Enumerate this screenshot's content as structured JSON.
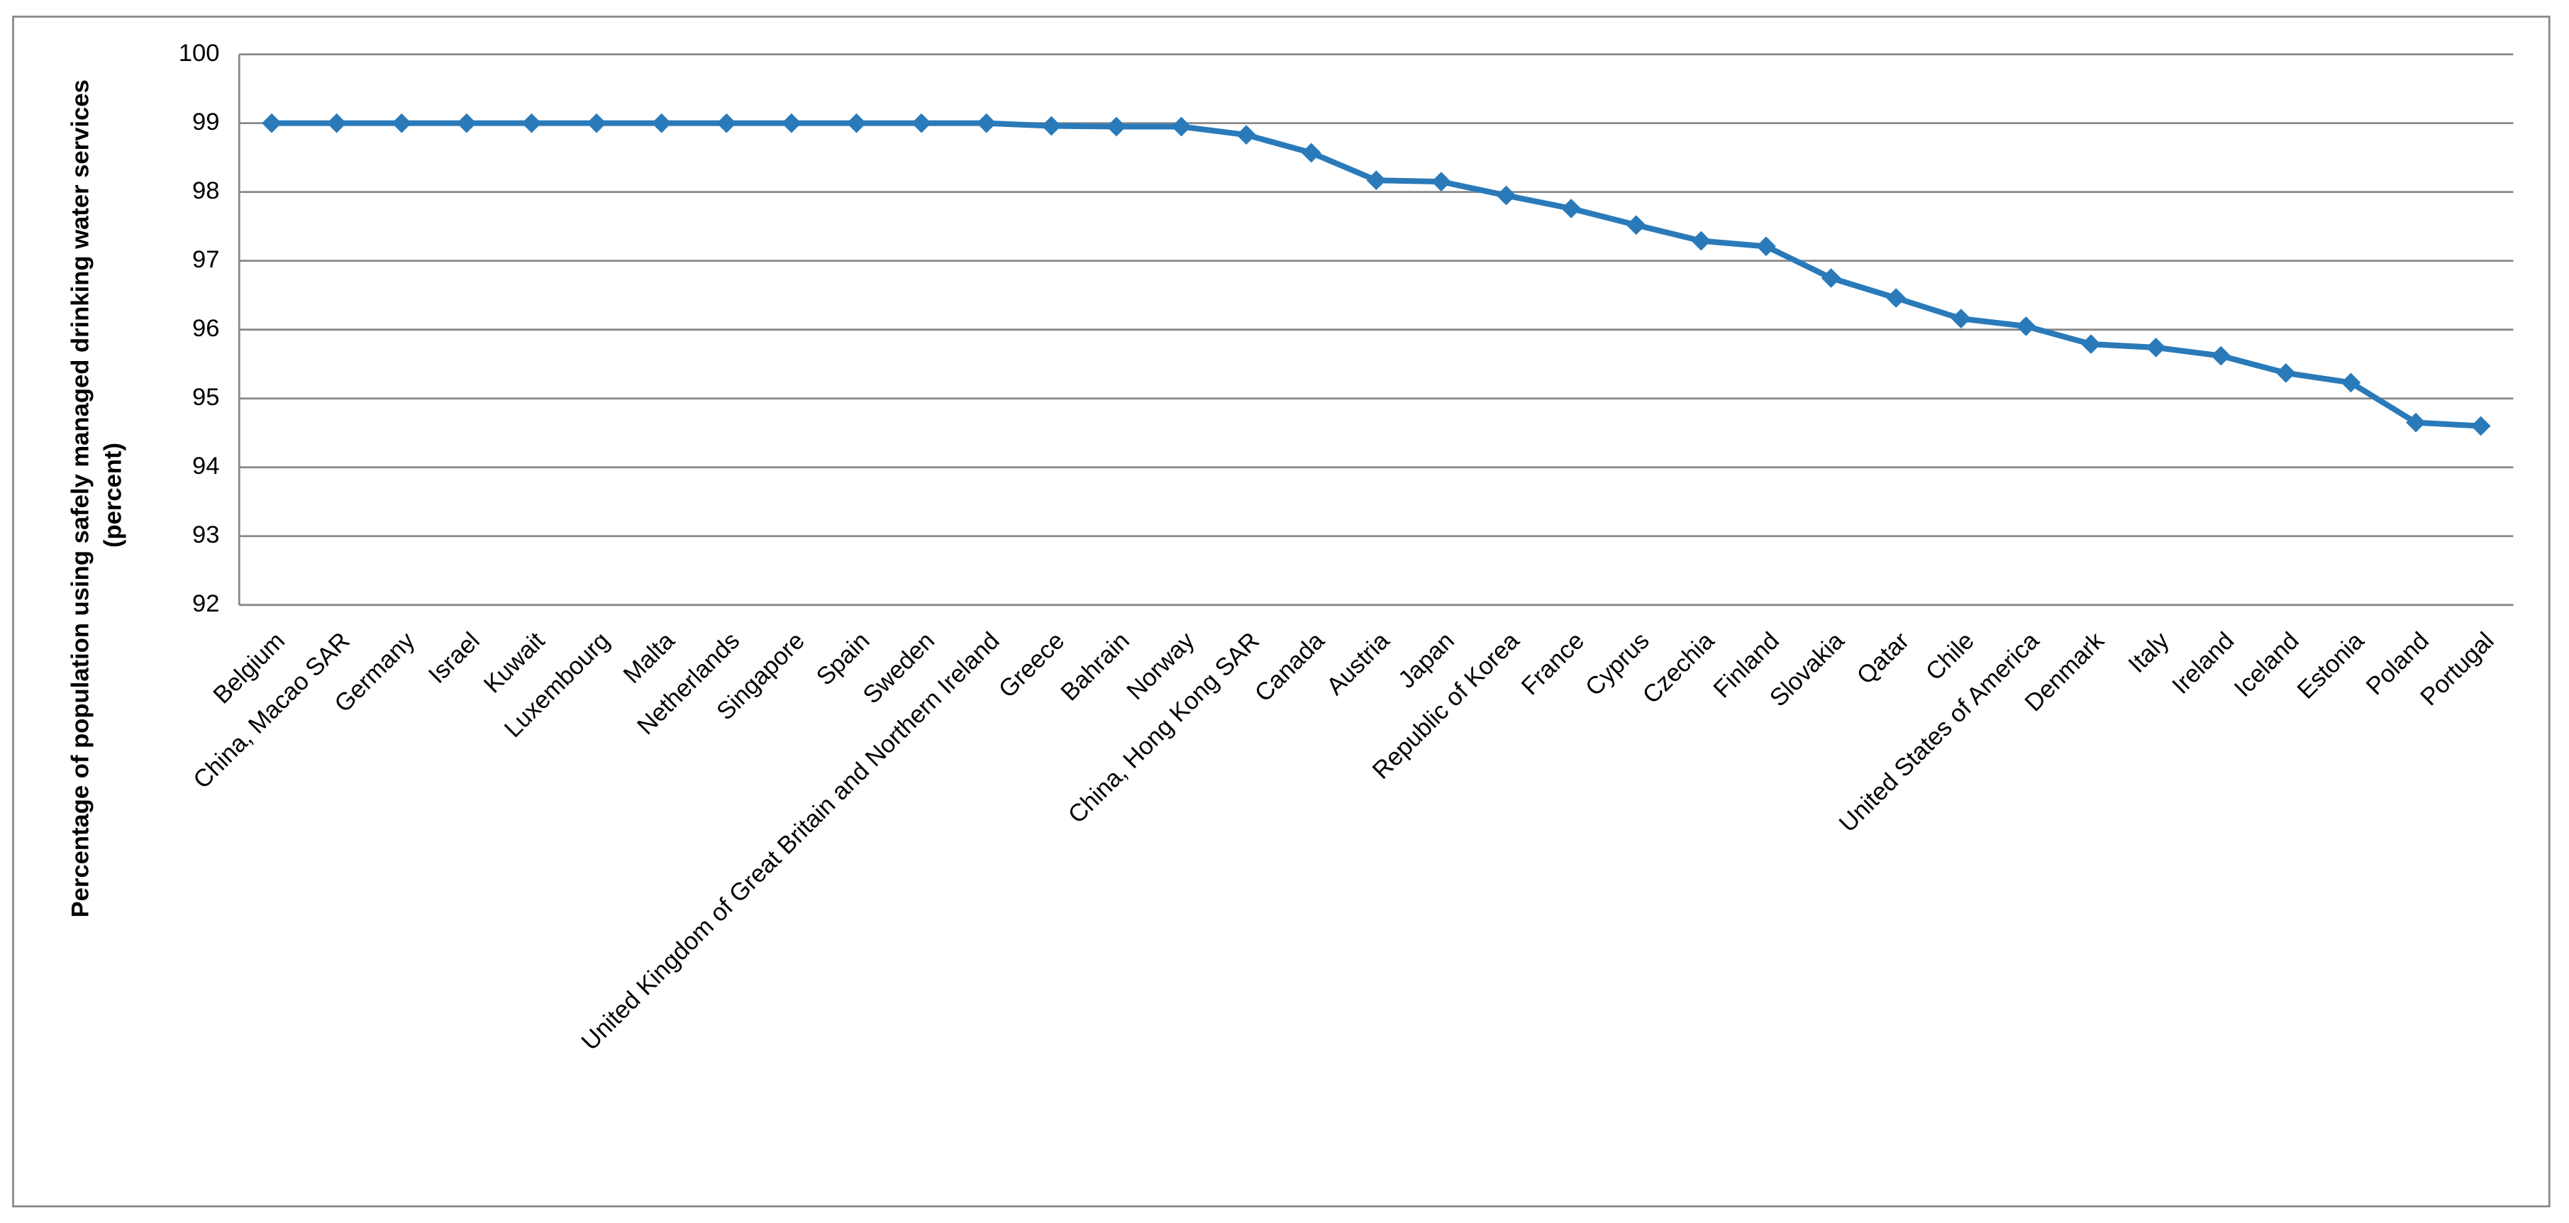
{
  "chart_data": {
    "type": "line",
    "y_label": "Percentage of population using safely managed drinking water services (percent)",
    "categories": [
      "Belgium",
      "China, Macao SAR",
      "Germany",
      "Israel",
      "Kuwait",
      "Luxembourg",
      "Malta",
      "Netherlands",
      "Singapore",
      "Spain",
      "Sweden",
      "United Kingdom of Great Britain and Northern Ireland",
      "Greece",
      "Bahrain",
      "Norway",
      "China, Hong Kong SAR",
      "Canada",
      "Austria",
      "Japan",
      "Republic of Korea",
      "France",
      "Cyprus",
      "Czechia",
      "Finland",
      "Slovakia",
      "Qatar",
      "Chile",
      "United States of America",
      "Denmark",
      "Italy",
      "Ireland",
      "Iceland",
      "Estonia",
      "Poland",
      "Portugal"
    ],
    "series": [
      {
        "color": "#2a7ab9",
        "values": [
          99,
          99,
          99,
          99,
          99,
          99,
          99,
          99,
          99,
          99,
          99,
          99,
          98.96,
          98.95,
          98.95,
          98.83,
          98.57,
          98.17,
          98.15,
          97.95,
          97.76,
          97.52,
          97.29,
          97.21,
          96.75,
          96.46,
          96.16,
          96.05,
          95.79,
          95.74,
          95.62,
          95.37,
          95.23,
          94.65,
          94.6
        ]
      }
    ],
    "ylim": [
      92,
      100
    ],
    "yticks": [
      92,
      93,
      94,
      95,
      96,
      97,
      98,
      99,
      100
    ],
    "grid": true
  }
}
